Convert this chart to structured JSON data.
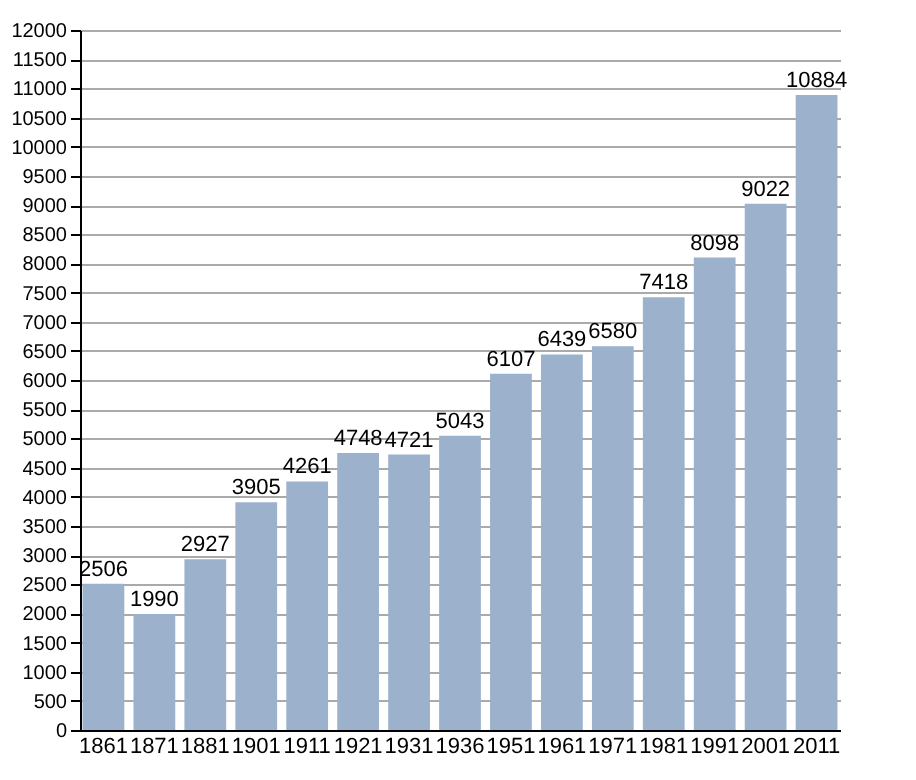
{
  "chart_data": {
    "type": "bar",
    "categories": [
      "1861",
      "1871",
      "1881",
      "1901",
      "1911",
      "1921",
      "1931",
      "1936",
      "1951",
      "1961",
      "1971",
      "1981",
      "1991",
      "2001",
      "2011"
    ],
    "values": [
      2506,
      1990,
      2927,
      3905,
      4261,
      4748,
      4721,
      5043,
      6107,
      6439,
      6580,
      7418,
      8098,
      9022,
      10884
    ],
    "color": "#9cb2cc",
    "data_labels": true,
    "grid": "y",
    "ylim": [
      0,
      12000
    ],
    "yticks": [
      0,
      500,
      1000,
      1500,
      2000,
      2500,
      3000,
      3500,
      4000,
      4500,
      5000,
      5500,
      6000,
      6500,
      7000,
      7500,
      8000,
      8500,
      9000,
      9500,
      10000,
      10500,
      11000,
      11500,
      12000
    ]
  }
}
